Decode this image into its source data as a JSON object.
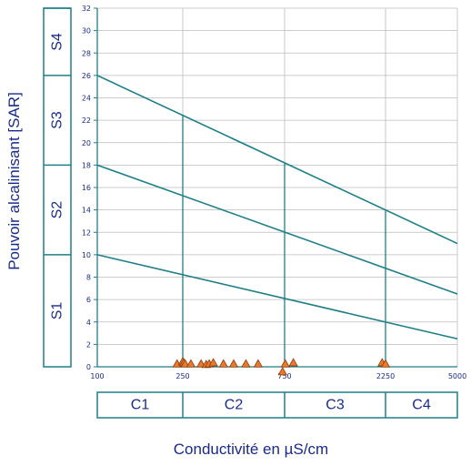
{
  "chart_data": {
    "type": "scatter",
    "title": "",
    "xlabel": "Conductivité en µS/cm",
    "ylabel": "Pouvoir alcalinisant [SAR]",
    "x_tick_labels": [
      "100",
      "250",
      "750",
      "2250",
      "5000"
    ],
    "y_ticks": [
      0,
      2,
      4,
      6,
      8,
      10,
      12,
      14,
      16,
      18,
      20,
      22,
      24,
      26,
      28,
      30,
      32
    ],
    "ylim": [
      0,
      32
    ],
    "grid": true,
    "salinity_classes": [
      {
        "label": "C1",
        "from": 100,
        "to": 250
      },
      {
        "label": "C2",
        "from": 250,
        "to": 750
      },
      {
        "label": "C3",
        "from": 750,
        "to": 2250
      },
      {
        "label": "C4",
        "from": 2250,
        "to": 5000
      }
    ],
    "sodium_classes": [
      {
        "label": "S1",
        "from": 0,
        "to": 10
      },
      {
        "label": "S2",
        "from": 10,
        "to": 18
      },
      {
        "label": "S3",
        "from": 18,
        "to": 26
      },
      {
        "label": "S4",
        "from": 26,
        "to": 32
      }
    ],
    "boundary_lines": [
      {
        "x": [
          100,
          5000
        ],
        "y": [
          10,
          2.5
        ]
      },
      {
        "x": [
          100,
          5000
        ],
        "y": [
          18,
          6.5
        ]
      },
      {
        "x": [
          100,
          5000
        ],
        "y": [
          26,
          11
        ]
      }
    ],
    "series": [
      {
        "marker": "triangle",
        "color": "#e87a2a",
        "points": [
          {
            "x": 240,
            "y": 0.1
          },
          {
            "x": 250,
            "y": 0.3
          },
          {
            "x": 255,
            "y": 0.2
          },
          {
            "x": 262,
            "y": 0.1
          },
          {
            "x": 290,
            "y": 0.1
          },
          {
            "x": 340,
            "y": 0.1
          },
          {
            "x": 365,
            "y": 0.05
          },
          {
            "x": 380,
            "y": 0.1
          },
          {
            "x": 400,
            "y": 0.2
          },
          {
            "x": 450,
            "y": 0.1
          },
          {
            "x": 500,
            "y": 0.1
          },
          {
            "x": 560,
            "y": 0.1
          },
          {
            "x": 620,
            "y": 0.1
          },
          {
            "x": 740,
            "y": -0.6
          },
          {
            "x": 760,
            "y": 0.1
          },
          {
            "x": 880,
            "y": 0.2
          },
          {
            "x": 2200,
            "y": 0.2
          },
          {
            "x": 2250,
            "y": 0.1
          }
        ]
      }
    ]
  }
}
